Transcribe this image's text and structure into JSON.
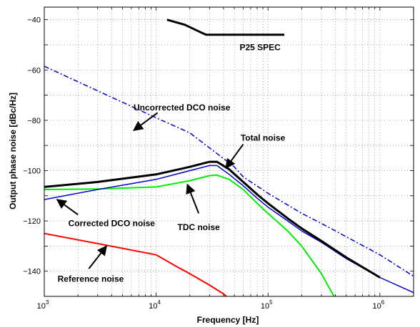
{
  "chart_data": {
    "type": "line",
    "title": "",
    "xlabel": "Frequency [Hz]",
    "ylabel": "Output phase noise [dBc/Hz]",
    "xscale": "log",
    "xlim": [
      1000,
      2000000
    ],
    "ylim": [
      -150,
      -35
    ],
    "grid": "dotted",
    "legend": "none",
    "x_ticks": [
      {
        "value": 1000,
        "base": "10",
        "exp": "3"
      },
      {
        "value": 10000,
        "base": "10",
        "exp": "4"
      },
      {
        "value": 100000,
        "base": "10",
        "exp": "5"
      },
      {
        "value": 1000000,
        "base": "10",
        "exp": "6"
      }
    ],
    "y_ticks": [
      {
        "value": -40,
        "label": "−40"
      },
      {
        "value": -60,
        "label": "−60"
      },
      {
        "value": -80,
        "label": "−80"
      },
      {
        "value": -100,
        "label": "−100"
      },
      {
        "value": -120,
        "label": "−120"
      },
      {
        "value": -140,
        "label": "−140"
      }
    ],
    "series": [
      {
        "key": "p25",
        "color": "#000000",
        "style": "solid",
        "width": 3,
        "points": [
          [
            12500,
            -40.0
          ],
          [
            18000,
            -42.0
          ],
          [
            25000,
            -45.0
          ],
          [
            28000,
            -46.0
          ],
          [
            140000,
            -46.0
          ]
        ]
      },
      {
        "key": "uncorrected",
        "color": "#0000cc",
        "style": "dashdot",
        "width": 1.5,
        "points": [
          [
            1000,
            -58.5
          ],
          [
            10000,
            -79.0
          ],
          [
            20000,
            -85.0
          ],
          [
            50000,
            -98.5
          ],
          [
            60000,
            -102.5
          ],
          [
            100000,
            -109.0
          ],
          [
            200000,
            -117.0
          ],
          [
            300000,
            -121.0
          ],
          [
            1000000,
            -133.5
          ],
          [
            2000000,
            -142.0
          ]
        ]
      },
      {
        "key": "reference",
        "color": "#ff0000",
        "style": "solid",
        "width": 2,
        "points": [
          [
            1000,
            -125.0
          ],
          [
            3000,
            -129.0
          ],
          [
            10000,
            -133.5
          ],
          [
            12000,
            -135.5
          ],
          [
            15000,
            -138.0
          ],
          [
            20000,
            -141.0
          ],
          [
            30000,
            -145.5
          ],
          [
            40000,
            -149.0
          ],
          [
            45000,
            -151.0
          ]
        ]
      },
      {
        "key": "tdc",
        "color": "#00ee00",
        "style": "solid",
        "width": 2,
        "points": [
          [
            1000,
            -107.5
          ],
          [
            3000,
            -107.3
          ],
          [
            10000,
            -106.5
          ],
          [
            20000,
            -104.0
          ],
          [
            30000,
            -102.0
          ],
          [
            35000,
            -101.8
          ],
          [
            45000,
            -103.5
          ],
          [
            60000,
            -107.5
          ],
          [
            80000,
            -113.0
          ],
          [
            100000,
            -117.0
          ],
          [
            150000,
            -124.0
          ],
          [
            200000,
            -130.0
          ],
          [
            300000,
            -141.0
          ],
          [
            400000,
            -151.0
          ]
        ]
      },
      {
        "key": "corrected",
        "color": "#0000cc",
        "style": "solid",
        "width": 1.5,
        "points": [
          [
            1000,
            -111.5
          ],
          [
            3000,
            -107.5
          ],
          [
            10000,
            -103.5
          ],
          [
            20000,
            -100.0
          ],
          [
            30000,
            -98.0
          ],
          [
            35000,
            -98.0
          ],
          [
            45000,
            -101.5
          ],
          [
            60000,
            -106.0
          ],
          [
            80000,
            -111.0
          ],
          [
            100000,
            -114.5
          ],
          [
            150000,
            -120.0
          ],
          [
            200000,
            -124.0
          ],
          [
            300000,
            -128.5
          ],
          [
            500000,
            -135.0
          ],
          [
            1000000,
            -142.5
          ],
          [
            2000000,
            -148.5
          ]
        ]
      },
      {
        "key": "total",
        "color": "#000000",
        "style": "solid",
        "width": 3,
        "points": [
          [
            1000,
            -106.5
          ],
          [
            3000,
            -104.5
          ],
          [
            10000,
            -101.5
          ],
          [
            20000,
            -98.5
          ],
          [
            30000,
            -96.5
          ],
          [
            35000,
            -96.5
          ],
          [
            45000,
            -99.5
          ],
          [
            60000,
            -104.5
          ],
          [
            80000,
            -109.5
          ],
          [
            100000,
            -113.0
          ],
          [
            150000,
            -119.0
          ],
          [
            200000,
            -123.0
          ],
          [
            300000,
            -128.0
          ],
          [
            500000,
            -134.5
          ],
          [
            1000000,
            -142.5
          ]
        ]
      }
    ],
    "annotations": [
      {
        "key": "p25_label",
        "text": "P25 SPEC",
        "at": [
          85000,
          -51
        ],
        "anchor": "middle",
        "arrow_from": null,
        "arrow_to": null
      },
      {
        "key": "uncorrected_label",
        "text": "Uncorrected DCO noise",
        "at": [
          17000,
          -75
        ],
        "anchor": "middle",
        "arrow_from": [
          10300,
          -77
        ],
        "arrow_to": [
          6300,
          -84
        ]
      },
      {
        "key": "total_label",
        "text": "Total noise",
        "at": [
          90000,
          -87
        ],
        "anchor": "middle",
        "arrow_from": [
          60000,
          -89.5
        ],
        "arrow_to": [
          42000,
          -99
        ]
      },
      {
        "key": "corrected_label",
        "text": "Corrected DCO noise",
        "at": [
          4000,
          -121
        ],
        "anchor": "middle",
        "arrow_from": [
          2000,
          -117.5
        ],
        "arrow_to": [
          1300,
          -111.5
        ]
      },
      {
        "key": "tdc_label",
        "text": "TDC noise",
        "at": [
          24000,
          -122.5
        ],
        "anchor": "middle",
        "arrow_from": [
          24000,
          -117
        ],
        "arrow_to": [
          19000,
          -105.5
        ]
      },
      {
        "key": "reference_label",
        "text": "Reference noise",
        "at": [
          2600,
          -143
        ],
        "anchor": "middle",
        "arrow_from": [
          2500,
          -139
        ],
        "arrow_to": [
          3600,
          -130
        ]
      }
    ]
  }
}
